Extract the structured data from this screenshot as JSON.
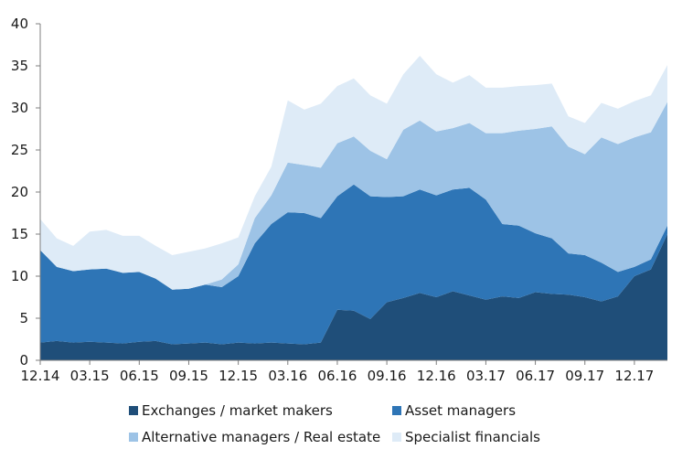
{
  "chart_data": {
    "type": "area",
    "stacked": true,
    "title": "",
    "xlabel": "",
    "ylabel": "",
    "ylim": [
      0,
      40
    ],
    "yticks": [
      0,
      5,
      10,
      15,
      20,
      25,
      30,
      35,
      40
    ],
    "x_tick_labels": [
      "12.14",
      "03.15",
      "06.15",
      "09.15",
      "12.15",
      "03.16",
      "06.16",
      "09.16",
      "12.16",
      "03.17",
      "06.17",
      "09.17",
      "12.17"
    ],
    "x_tick_index": [
      0,
      3,
      6,
      9,
      12,
      15,
      18,
      21,
      24,
      27,
      30,
      33,
      36
    ],
    "grid": false,
    "legend_position": "bottom",
    "series": [
      {
        "name": "Exchanges / market makers",
        "color": "#1f4e79",
        "values": [
          2.1,
          2.3,
          2.1,
          2.2,
          2.1,
          2.0,
          2.2,
          2.3,
          1.9,
          2.0,
          2.1,
          1.9,
          2.1,
          2.0,
          2.1,
          2.0,
          1.9,
          2.1,
          6.0,
          5.9,
          4.9,
          6.9,
          7.4,
          8.0,
          7.5,
          8.2,
          7.7,
          7.2,
          7.6,
          7.4,
          8.1,
          7.9,
          7.8,
          7.5,
          7.0,
          7.6,
          10.0,
          10.8,
          15.0
        ]
      },
      {
        "name": "Asset managers",
        "color": "#2e75b6",
        "values": [
          11.0,
          8.8,
          8.5,
          8.6,
          8.8,
          8.4,
          8.3,
          7.4,
          6.5,
          6.5,
          6.9,
          6.8,
          7.9,
          11.9,
          14.1,
          15.6,
          15.6,
          14.8,
          13.5,
          15.0,
          14.6,
          12.5,
          12.1,
          12.3,
          12.1,
          12.1,
          12.8,
          11.9,
          8.6,
          8.6,
          7.0,
          6.6,
          4.9,
          5.0,
          4.6,
          2.9,
          1.1,
          1.2,
          1.0
        ]
      },
      {
        "name": "Alternative managers / Real estate",
        "color": "#9dc3e6",
        "values": [
          0,
          0,
          0,
          0,
          0,
          0,
          0,
          0,
          0,
          0,
          0,
          0.9,
          1.4,
          3.0,
          3.4,
          5.9,
          5.7,
          6.0,
          6.3,
          5.7,
          5.4,
          4.5,
          7.9,
          8.2,
          7.6,
          7.3,
          7.7,
          7.9,
          10.8,
          11.3,
          12.4,
          13.3,
          12.7,
          12.0,
          14.9,
          15.2,
          15.4,
          15.1,
          14.7
        ]
      },
      {
        "name": "Specialist financials",
        "color": "#deebf7",
        "values": [
          3.7,
          3.4,
          3.0,
          4.5,
          4.6,
          4.4,
          4.3,
          3.9,
          4.1,
          4.4,
          4.3,
          4.3,
          3.2,
          2.6,
          3.4,
          7.4,
          6.6,
          7.6,
          6.8,
          6.9,
          6.6,
          6.6,
          6.6,
          7.7,
          6.8,
          5.4,
          5.7,
          5.4,
          5.4,
          5.3,
          5.2,
          5.1,
          3.6,
          3.7,
          4.1,
          4.2,
          4.3,
          4.4,
          4.4
        ]
      }
    ]
  }
}
